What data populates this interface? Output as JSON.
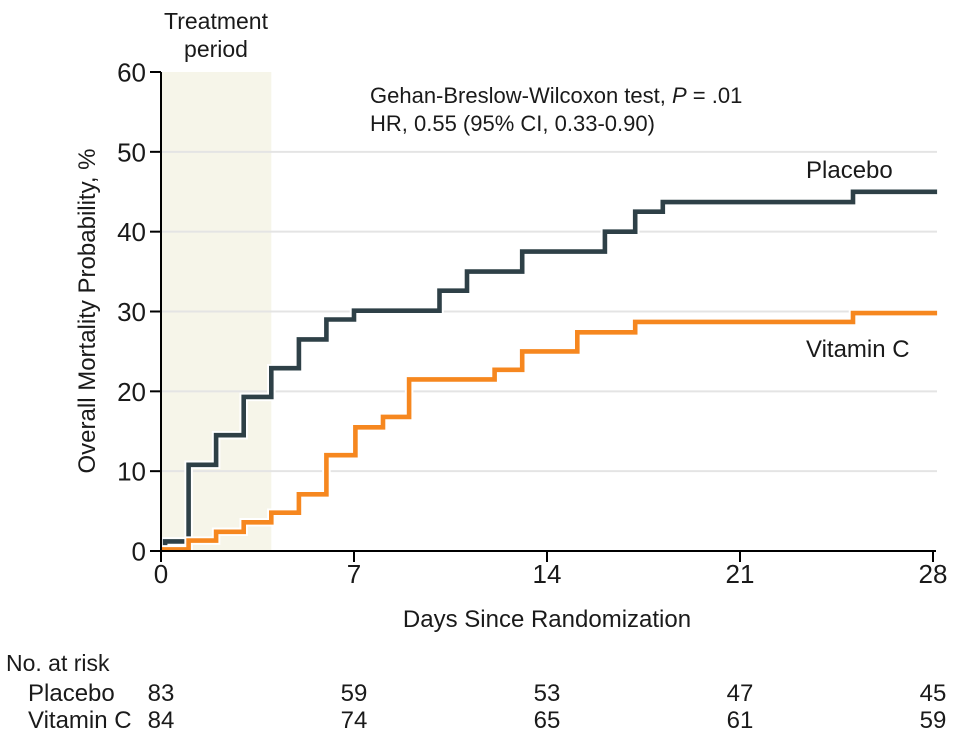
{
  "chart_data": {
    "type": "line",
    "subtype": "kaplan-meier-step",
    "title": "",
    "xlabel": "Days Since Randomization",
    "ylabel": "Overall Mortality Probability, %",
    "xlim": [
      0,
      28
    ],
    "ylim": [
      0,
      60
    ],
    "xticks": [
      0,
      7,
      14,
      21,
      28
    ],
    "yticks": [
      0,
      10,
      20,
      30,
      40,
      50,
      60
    ],
    "grid": "horizontal",
    "x_end": 28.15,
    "annotation": {
      "line1_prefix": "Gehan-Breslow-Wilcoxon test, ",
      "line1_italic": "P",
      "line1_suffix": " = .01",
      "line2": "HR, 0.55 (95% CI, 0.33-0.90)"
    },
    "treatment_band": {
      "x0": 0,
      "x1": 4,
      "label_line1": "Treatment",
      "label_line2": "period",
      "color": "#f6f5e9"
    },
    "series": [
      {
        "name": "Placebo",
        "color": "#2e4047",
        "steps": [
          [
            0,
            0
          ],
          [
            0.15,
            1.2
          ],
          [
            1,
            10.8
          ],
          [
            2,
            14.5
          ],
          [
            3,
            19.3
          ],
          [
            4,
            22.9
          ],
          [
            5,
            26.5
          ],
          [
            6,
            29.0
          ],
          [
            7,
            30.1
          ],
          [
            10.1,
            32.6
          ],
          [
            11.1,
            35.0
          ],
          [
            13.1,
            37.5
          ],
          [
            16.1,
            40.0
          ],
          [
            17.2,
            42.5
          ],
          [
            18.2,
            43.7
          ],
          [
            25.1,
            45.0
          ]
        ]
      },
      {
        "name": "Vitamin C",
        "color": "#f6871f",
        "steps": [
          [
            0,
            0.2
          ],
          [
            1,
            1.3
          ],
          [
            2,
            2.4
          ],
          [
            3,
            3.6
          ],
          [
            4,
            4.8
          ],
          [
            5,
            7.1
          ],
          [
            6,
            12.0
          ],
          [
            7.05,
            15.5
          ],
          [
            8.05,
            16.8
          ],
          [
            9,
            21.5
          ],
          [
            12.1,
            22.7
          ],
          [
            13.1,
            25.0
          ],
          [
            15.1,
            27.4
          ],
          [
            17.2,
            28.7
          ],
          [
            25.1,
            29.8
          ]
        ]
      }
    ]
  },
  "risk_table": {
    "title": "No. at risk",
    "days": [
      0,
      7,
      14,
      21,
      28
    ],
    "rows": [
      {
        "label": "Placebo",
        "values": [
          "83",
          "59",
          "53",
          "47",
          "45"
        ]
      },
      {
        "label": "Vitamin C",
        "values": [
          "84",
          "74",
          "65",
          "61",
          "59"
        ]
      }
    ]
  },
  "colors": {
    "placebo": "#2e4047",
    "vitamin_c": "#f6871f",
    "band": "#f6f5e9",
    "gridline": "#e4e4e4",
    "axis": "#000000",
    "text": "#1a1a1a",
    "background": "#ffffff"
  }
}
